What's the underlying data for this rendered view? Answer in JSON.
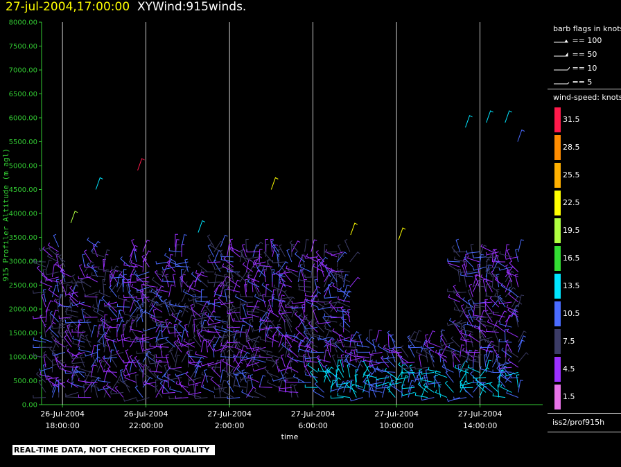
{
  "header": {
    "timestamp": "27-jul-2004,17:00:00",
    "product": "XYWind:915winds."
  },
  "chart_data": {
    "type": "scatter",
    "mark": "wind-barb",
    "ylabel": "915 Profiler Altitude (m agl)",
    "xlabel": "time",
    "ylim": [
      0,
      8000
    ],
    "y_ticks": [
      "0.00",
      "500.00",
      "1000.00",
      "1500.00",
      "2000.00",
      "2500.00",
      "3000.00",
      "3500.00",
      "4000.00",
      "4500.00",
      "5000.00",
      "5500.00",
      "6000.00",
      "6500.00",
      "7000.00",
      "7500.00",
      "8000.00"
    ],
    "x_ticks": [
      {
        "date": "26-Jul-2004",
        "time": "18:00:00",
        "hour": 0
      },
      {
        "date": "26-Jul-2004",
        "time": "22:00:00",
        "hour": 4
      },
      {
        "date": "27-Jul-2004",
        "time": "2:00:00",
        "hour": 8
      },
      {
        "date": "27-Jul-2004",
        "time": "6:00:00",
        "hour": 12
      },
      {
        "date": "27-Jul-2004",
        "time": "10:00:00",
        "hour": 16
      },
      {
        "date": "27-Jul-2004",
        "time": "14:00:00",
        "hour": 20
      }
    ],
    "xlim_hours": [
      -1,
      23
    ],
    "grid": "vertical lines at time ticks",
    "colorbar": {
      "title": "wind-speed: knots",
      "levels": [
        "31.5",
        "28.5",
        "25.5",
        "22.5",
        "19.5",
        "16.5",
        "13.5",
        "10.5",
        "7.5",
        "4.5",
        "1.5"
      ],
      "colors": [
        "#ff1a4b",
        "#ff8c00",
        "#ffb000",
        "#ffff00",
        "#b0ff40",
        "#33dd33",
        "#00e5ff",
        "#4a6bff",
        "#3c3c66",
        "#9b30ff",
        "#e873e8"
      ]
    },
    "barb_legend": {
      "title": "barb flags in knots",
      "entries": [
        "== 100",
        "== 50",
        "== 10",
        "== 5"
      ]
    },
    "source_id": "iss2/prof915h"
  },
  "banner": "REAL-TIME DATA, NOT CHECKED FOR QUALITY",
  "colors": {
    "axis": "#33cc33",
    "title_time": "#ffff00",
    "grid": "#ffffff"
  }
}
